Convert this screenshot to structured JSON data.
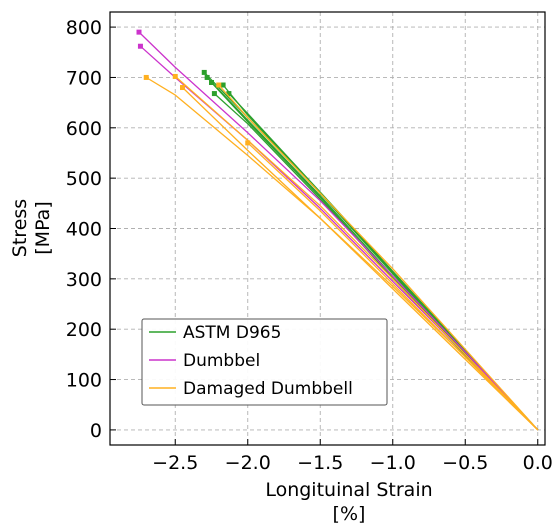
{
  "chart_data": {
    "type": "line",
    "xlabel": "Longituinal Strain",
    "xlabel_unit": "[%]",
    "ylabel": "Stress",
    "ylabel_unit": "[MPa]",
    "xlim": [
      -2.95,
      0.05
    ],
    "ylim": [
      -30,
      830
    ],
    "xticks": [
      -2.5,
      -2.0,
      -1.5,
      -1.0,
      -0.5,
      0.0
    ],
    "xtick_labels": [
      "−2.5",
      "−2.0",
      "−1.5",
      "−1.0",
      "−0.5",
      "0.0"
    ],
    "yticks": [
      0,
      100,
      200,
      300,
      400,
      500,
      600,
      700,
      800
    ],
    "ytick_labels": [
      "0",
      "100",
      "200",
      "300",
      "400",
      "500",
      "600",
      "700",
      "800"
    ],
    "grid": true,
    "legend_position": "lower-left",
    "series": [
      {
        "name": "ASTM D965",
        "color": "#2ca02c",
        "curves": [
          {
            "x": [
              0.0,
              -0.5,
              -1.0,
              -1.5,
              -2.0,
              -2.3
            ],
            "y": [
              0,
              150,
              310,
              470,
              620,
              710
            ]
          },
          {
            "x": [
              0.0,
              -0.5,
              -1.0,
              -1.5,
              -2.0,
              -2.28
            ],
            "y": [
              0,
              152,
              305,
              465,
              615,
              700
            ]
          },
          {
            "x": [
              0.0,
              -0.5,
              -1.0,
              -1.5,
              -2.0,
              -2.25
            ],
            "y": [
              0,
              148,
              300,
              462,
              612,
              690
            ]
          },
          {
            "x": [
              0.0,
              -0.5,
              -1.0,
              -1.5,
              -2.0,
              -2.23
            ],
            "y": [
              0,
              150,
              302,
              458,
              608,
              668
            ]
          },
          {
            "x": [
              0.0,
              -0.5,
              -1.0,
              -1.5,
              -2.0,
              -2.17
            ],
            "y": [
              0,
              155,
              312,
              470,
              625,
              685
            ]
          },
          {
            "x": [
              0.0,
              -0.5,
              -1.0,
              -1.5,
              -2.0,
              -2.13
            ],
            "y": [
              0,
              158,
              315,
              472,
              628,
              668
            ]
          }
        ]
      },
      {
        "name": "Dumbbel",
        "color": "#cc33cc",
        "curves": [
          {
            "x": [
              0.0,
              -0.5,
              -1.0,
              -1.5,
              -2.0,
              -2.5,
              -2.75
            ],
            "y": [
              0,
              155,
              305,
              455,
              590,
              720,
              790
            ]
          },
          {
            "x": [
              0.0,
              -0.5,
              -1.0,
              -1.5,
              -2.0,
              -2.5,
              -2.74
            ],
            "y": [
              0,
              150,
              295,
              440,
              575,
              700,
              762
            ]
          }
        ]
      },
      {
        "name": "Damaged Dumbbell",
        "color": "#ffb020",
        "curves": [
          {
            "x": [
              0.0,
              -0.5,
              -1.0,
              -1.5,
              -2.0,
              -2.5,
              -2.7
            ],
            "y": [
              0,
              145,
              285,
              420,
              545,
              665,
              700
            ]
          },
          {
            "x": [
              0.0,
              -0.5,
              -1.0,
              -1.5,
              -2.0,
              -2.5
            ],
            "y": [
              0,
              150,
              300,
              445,
              575,
              702
            ]
          },
          {
            "x": [
              0.0,
              -0.5,
              -1.0,
              -1.5,
              -2.0,
              -2.45
            ],
            "y": [
              0,
              140,
              280,
              420,
              555,
              680
            ]
          },
          {
            "x": [
              0.0,
              -0.5,
              -1.0,
              -1.5,
              -2.0,
              -2.2
            ],
            "y": [
              0,
              160,
              320,
              470,
              620,
              685
            ]
          },
          {
            "x": [
              0.0,
              -0.5,
              -1.0,
              -1.5,
              -2.0
            ],
            "y": [
              0,
              145,
              290,
              435,
              570
            ]
          }
        ]
      }
    ]
  }
}
